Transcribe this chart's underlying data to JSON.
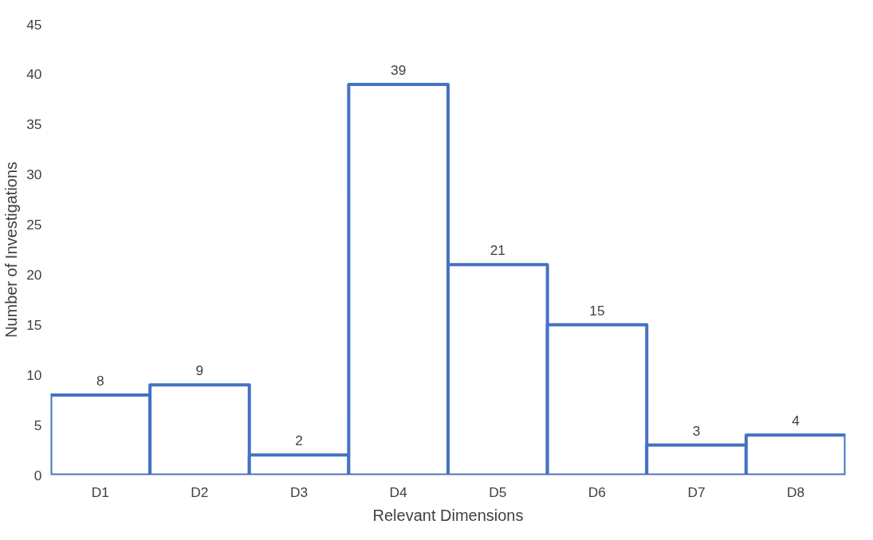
{
  "chart_data": {
    "type": "bar",
    "xlabel": "Relevant Dimensions",
    "ylabel": "Number of Investigations",
    "categories": [
      "D1",
      "D2",
      "D3",
      "D4",
      "D5",
      "D6",
      "D7",
      "D8"
    ],
    "values": [
      8,
      9,
      2,
      39,
      21,
      15,
      3,
      4
    ],
    "color": "#4472c4",
    "ylim": [
      0,
      45
    ],
    "yticks": [
      0,
      5,
      10,
      15,
      20,
      25,
      30,
      35,
      40,
      45
    ],
    "grid": false,
    "data_labels": true
  }
}
